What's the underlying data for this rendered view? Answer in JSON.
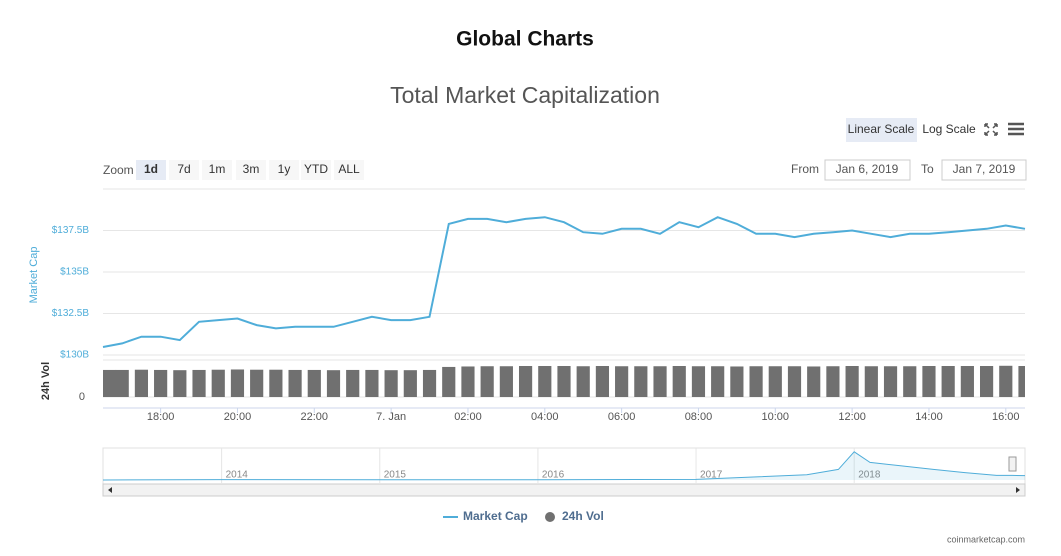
{
  "page_title": "Global Charts",
  "chart_data": {
    "type": "line",
    "title": "Total Market Capitalization",
    "scale_buttons": [
      "Linear Scale",
      "Log Scale"
    ],
    "zoom": {
      "label": "Zoom",
      "options": [
        "1d",
        "7d",
        "1m",
        "3m",
        "1y",
        "YTD",
        "ALL"
      ]
    },
    "range": {
      "from_label": "From",
      "from": "Jan 6, 2019",
      "to_label": "To",
      "to": "Jan 7, 2019"
    },
    "y_label": "Market Cap",
    "y2_label": "24h Vol",
    "credit": "coinmarketcap.com",
    "xlim": [
      16.5,
      40.5
    ],
    "xticks": [
      {
        "value": 18,
        "label": "18:00"
      },
      {
        "value": 20,
        "label": "20:00"
      },
      {
        "value": 22,
        "label": "22:00"
      },
      {
        "value": 24,
        "label": "7. Jan"
      },
      {
        "value": 26,
        "label": "02:00"
      },
      {
        "value": 28,
        "label": "04:00"
      },
      {
        "value": 30,
        "label": "06:00"
      },
      {
        "value": 32,
        "label": "08:00"
      },
      {
        "value": 34,
        "label": "10:00"
      },
      {
        "value": 36,
        "label": "12:00"
      },
      {
        "value": 38,
        "label": "14:00"
      },
      {
        "value": 40,
        "label": "16:00"
      }
    ],
    "ylim": [
      130,
      140
    ],
    "yticks": [
      {
        "value": 130,
        "label": "$130B"
      },
      {
        "value": 132.5,
        "label": "$132.5B"
      },
      {
        "value": 135,
        "label": "$135B"
      },
      {
        "value": 137.5,
        "label": "$137.5B"
      }
    ],
    "y2lim": [
      0,
      16
    ],
    "y2ticks": [
      0
    ],
    "x": [
      16.5,
      17,
      17.5,
      18,
      18.5,
      19,
      19.5,
      20,
      20.5,
      21,
      21.5,
      22,
      22.5,
      23,
      23.5,
      24,
      24.5,
      25,
      25.5,
      26,
      26.5,
      27,
      27.5,
      28,
      28.5,
      29,
      29.5,
      30,
      30.5,
      31,
      31.5,
      32,
      32.5,
      33,
      33.5,
      34,
      34.5,
      35,
      35.5,
      36,
      36.5,
      37,
      37.5,
      38,
      38.5,
      39,
      39.5,
      40,
      40.5
    ],
    "series": [
      {
        "name": "Market Cap",
        "color": "#4fadd9",
        "values": [
          130.48,
          130.7,
          131.1,
          131.1,
          130.9,
          132.0,
          132.1,
          132.2,
          131.8,
          131.6,
          131.7,
          131.7,
          131.7,
          132.0,
          132.3,
          132.1,
          132.1,
          132.3,
          137.9,
          138.2,
          138.2,
          138.0,
          138.2,
          138.3,
          138.0,
          137.4,
          137.3,
          137.6,
          137.6,
          137.3,
          138.0,
          137.7,
          138.3,
          137.9,
          137.3,
          137.3,
          137.1,
          137.3,
          137.4,
          137.5,
          137.3,
          137.1,
          137.3,
          137.3,
          137.4,
          137.5,
          137.6,
          137.8,
          137.6
        ]
      },
      {
        "name": "24h Vol",
        "color": "#707070",
        "axis": "y2",
        "values": [
          11.7,
          11.7,
          11.8,
          11.7,
          11.6,
          11.7,
          11.8,
          11.9,
          11.8,
          11.8,
          11.7,
          11.7,
          11.6,
          11.7,
          11.7,
          11.6,
          11.6,
          11.7,
          13.0,
          13.2,
          13.3,
          13.3,
          13.4,
          13.4,
          13.4,
          13.3,
          13.4,
          13.3,
          13.3,
          13.3,
          13.4,
          13.3,
          13.3,
          13.2,
          13.3,
          13.3,
          13.3,
          13.2,
          13.3,
          13.4,
          13.3,
          13.3,
          13.3,
          13.4,
          13.4,
          13.4,
          13.4,
          13.5,
          13.4
        ]
      }
    ],
    "legend": "bottom",
    "grid": true,
    "navigator": {
      "color": "#4fadd9",
      "xlim": [
        2013.25,
        2019.08
      ],
      "ylim": [
        0,
        850
      ],
      "xticks": [
        2014,
        2015,
        2016,
        2017,
        2018
      ],
      "x": [
        2013.25,
        2014,
        2015,
        2016,
        2017,
        2017.4,
        2017.7,
        2017.9,
        2018.0,
        2018.1,
        2018.3,
        2018.5,
        2018.7,
        2018.9,
        2019.0,
        2019.08
      ],
      "values": [
        1,
        10,
        5,
        7,
        18,
        90,
        150,
        300,
        800,
        500,
        400,
        300,
        210,
        130,
        130,
        125
      ]
    }
  }
}
